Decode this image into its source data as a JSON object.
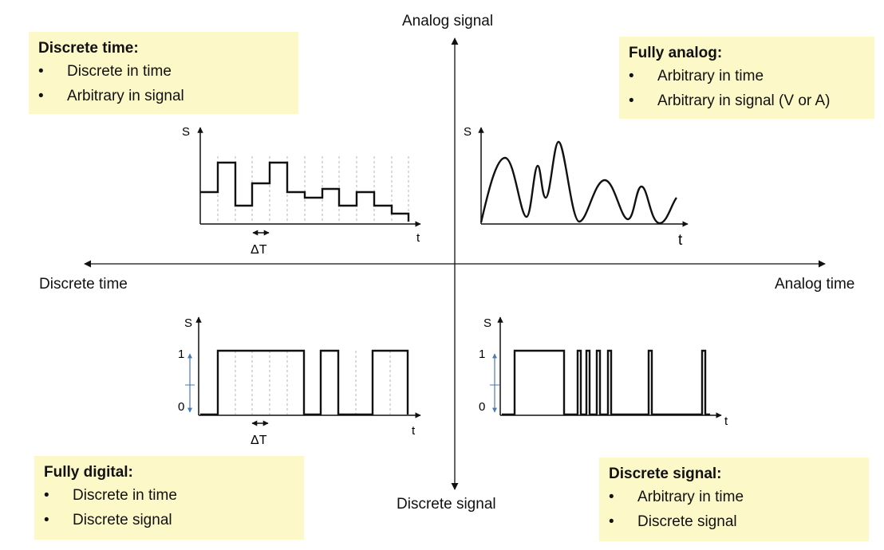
{
  "axes": {
    "top": "Analog signal",
    "bottom": "Discrete signal",
    "left": "Discrete time",
    "right": "Analog time"
  },
  "boxes": {
    "top_left": {
      "title": "Discrete time:",
      "items": [
        "Discrete in time",
        "Arbitrary in signal"
      ]
    },
    "top_right": {
      "title": "Fully analog:",
      "items": [
        "Arbitrary in time",
        "Arbitrary in signal (V or A)"
      ]
    },
    "bottom_left": {
      "title": "Fully digital:",
      "items": [
        "Discrete in time",
        "Discrete signal"
      ]
    },
    "bottom_right": {
      "title": "Discrete signal:",
      "items": [
        "Arbitrary in time",
        "Discrete signal"
      ]
    }
  },
  "plots": {
    "top_left": {
      "ylabel": "S",
      "xlabel": "t",
      "delta": "ΔT"
    },
    "top_right": {
      "ylabel": "S",
      "xlabel": "t"
    },
    "bottom_left": {
      "ylabel": "S",
      "xlabel": "t",
      "y_high": "1",
      "y_low": "0",
      "delta": "ΔT"
    },
    "bottom_right": {
      "ylabel": "S",
      "xlabel": "t",
      "y_high": "1",
      "y_low": "0"
    }
  },
  "colors": {
    "box_fill": "#fdf8c7",
    "line": "#111111",
    "grid": "#b5b5b5",
    "indicator": "#4a7ab5"
  }
}
